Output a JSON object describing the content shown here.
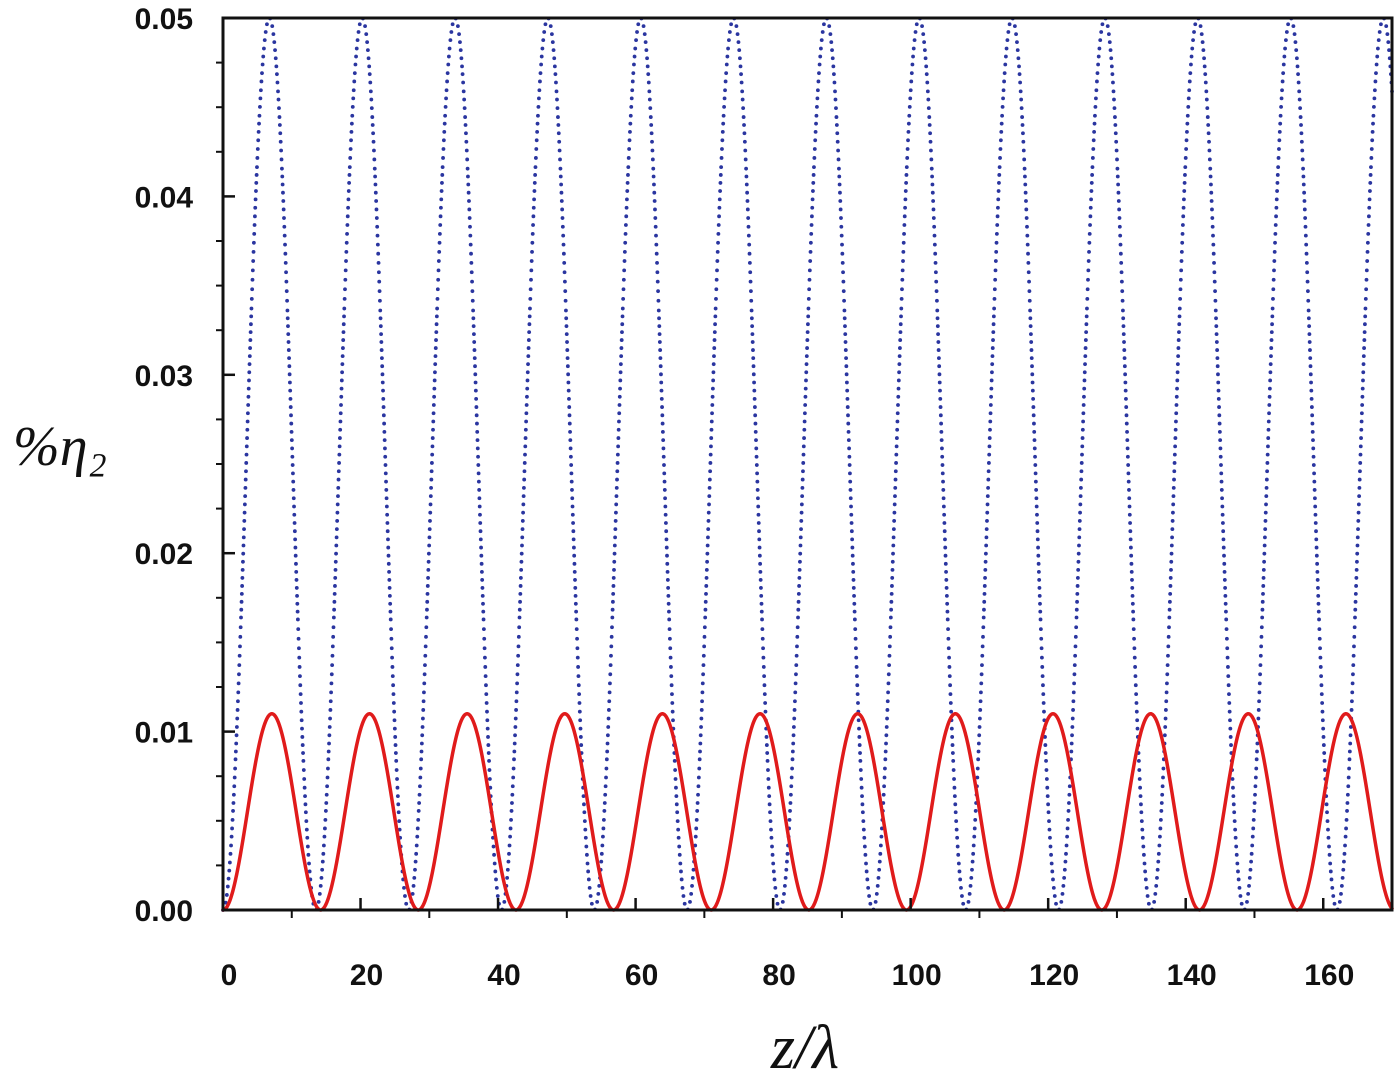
{
  "chart_data": {
    "type": "line",
    "title": "",
    "xlabel": "z/λ",
    "ylabel": "%η₂",
    "xlim": [
      0,
      170
    ],
    "ylim": [
      0,
      0.05
    ],
    "x_ticks": [
      0,
      20,
      40,
      60,
      80,
      100,
      120,
      140,
      160
    ],
    "x_tick_labels": [
      "0",
      "20",
      "40",
      "60",
      "80",
      "100",
      "120",
      "140",
      "160"
    ],
    "y_ticks": [
      0,
      0.01,
      0.02,
      0.03,
      0.04,
      0.05
    ],
    "y_tick_labels": [
      "0.00",
      "0.01",
      "0.02",
      "0.03",
      "0.04",
      "0.05"
    ],
    "grid": false,
    "legend": "none",
    "series": [
      {
        "style": "dotted",
        "color": "#2a35a0",
        "function": "amplitude * sin^2(pi * z / period)",
        "amplitude": 0.05,
        "period": 13.5,
        "peaks_z": [
          6.75,
          20.25,
          33.75,
          47.25,
          60.75,
          74.25,
          87.75,
          101.25,
          114.75,
          128.25,
          141.75,
          155.25,
          168.75
        ]
      },
      {
        "style": "solid",
        "color": "#e01b1b",
        "function": "amplitude * sin^2(pi * z / period)",
        "amplitude": 0.011,
        "period": 14.2,
        "peaks_z": [
          7.1,
          21.3,
          35.5,
          49.7,
          63.9,
          78.1,
          92.3,
          106.5,
          120.7,
          134.9,
          149.1,
          163.3
        ]
      }
    ]
  }
}
